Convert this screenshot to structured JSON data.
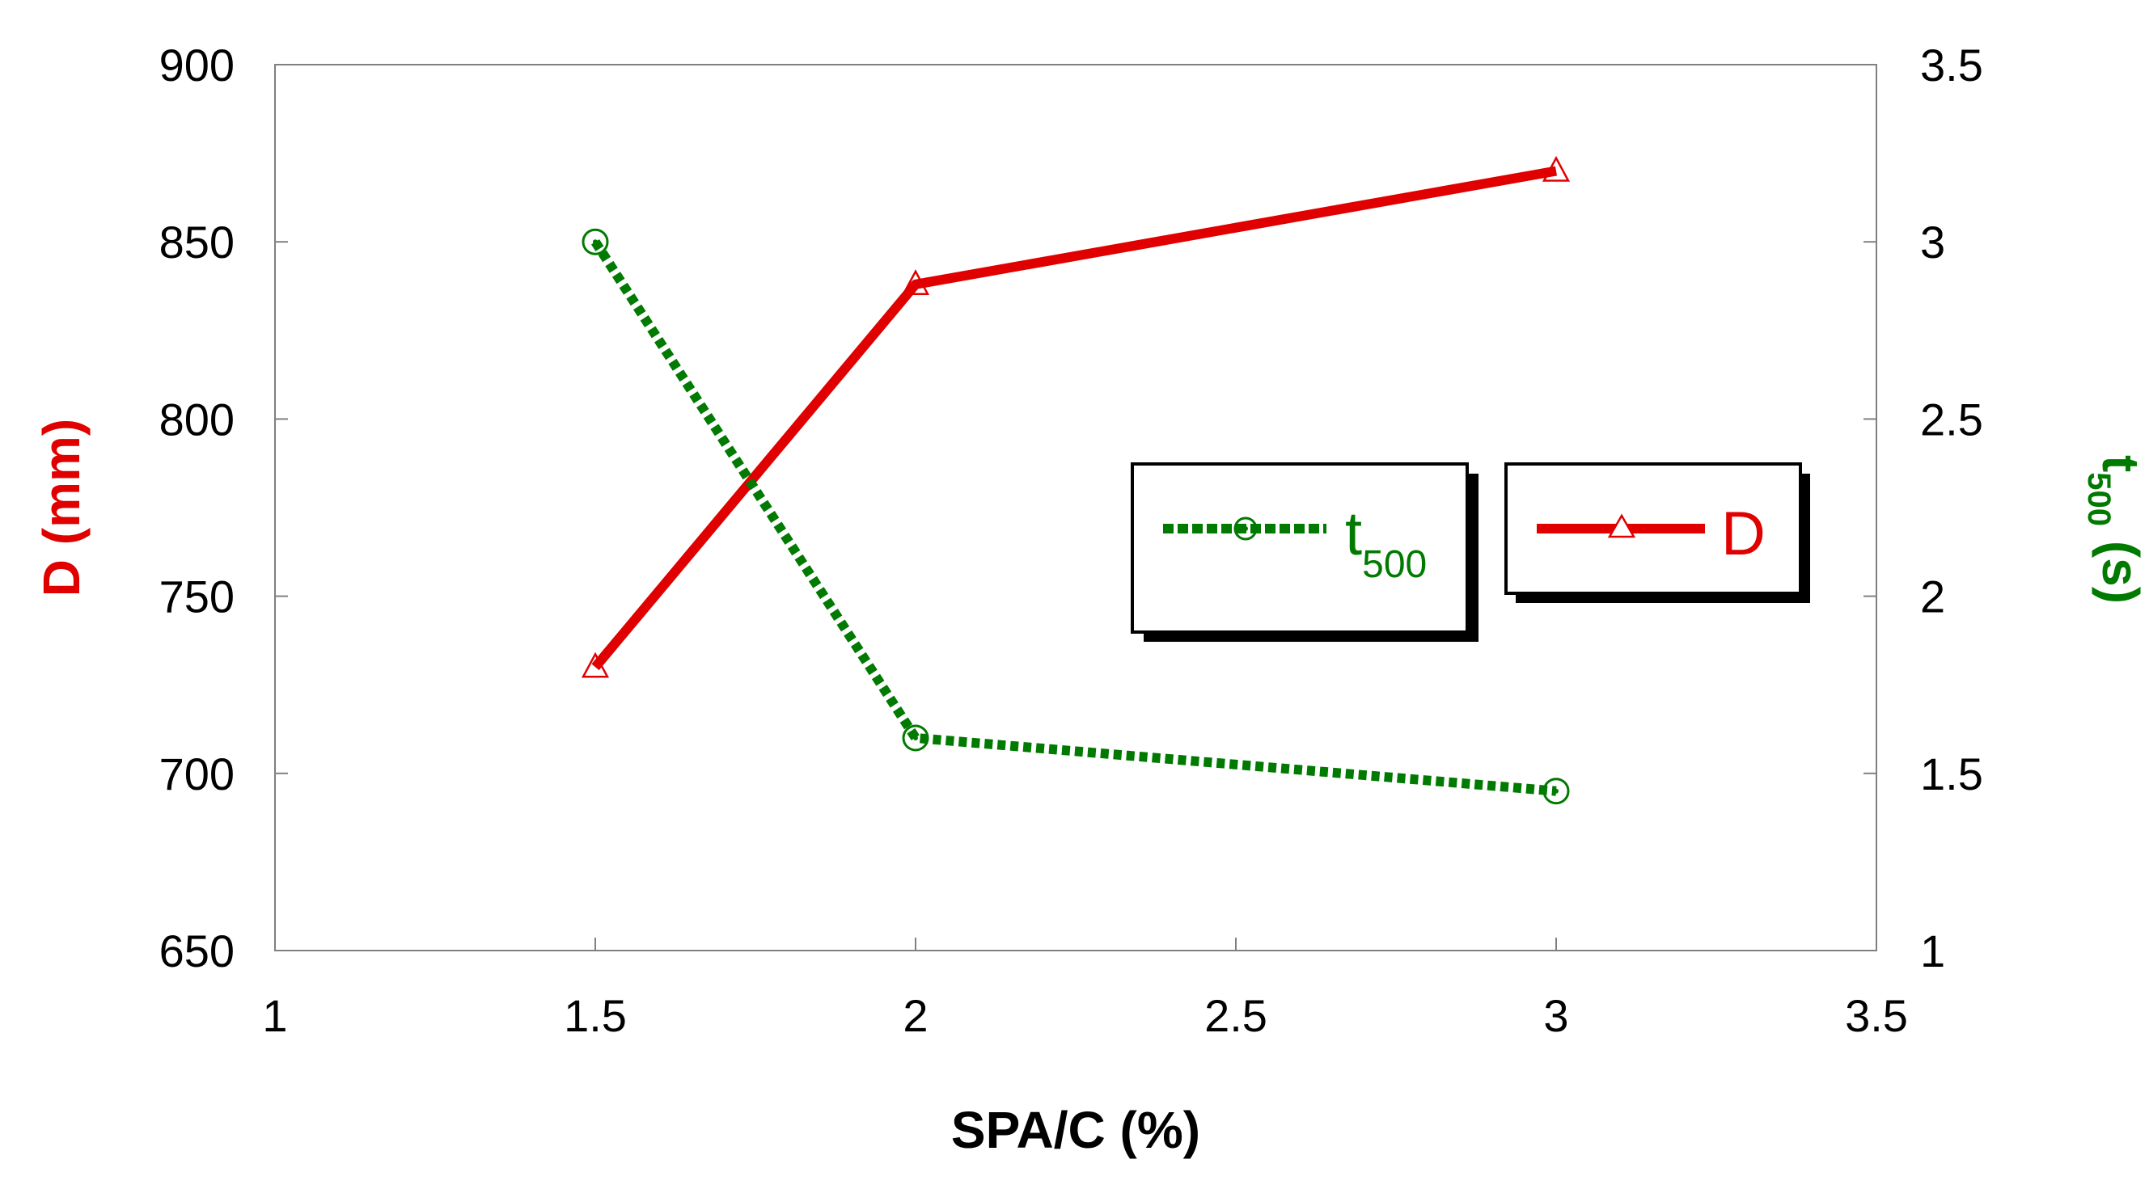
{
  "chart_data": {
    "type": "line",
    "title": "",
    "xlabel": "SPA/C (%)",
    "x": [
      1.5,
      2,
      3
    ],
    "xlim": [
      1,
      3.5
    ],
    "xticks": [
      "1",
      "1.5",
      "2",
      "2.5",
      "3",
      "3.5"
    ],
    "ylabel_left": "D (mm)",
    "ylim_left": [
      650,
      900
    ],
    "yticks_left": [
      "650",
      "700",
      "750",
      "800",
      "850",
      "900"
    ],
    "ylabel_right_main": "t",
    "ylabel_right_sub": "500",
    "ylabel_right_unit": " (s)",
    "ylim_right": [
      1,
      3.5
    ],
    "yticks_right": [
      "1",
      "1.5",
      "2",
      "2.5",
      "3",
      "3.5"
    ],
    "grid": false,
    "series": [
      {
        "name": "D",
        "axis": "left",
        "values": [
          730,
          838,
          870
        ],
        "color": "#e00000",
        "line_style": "solid",
        "marker": "triangle-open"
      },
      {
        "name": "t",
        "name_sub": "500",
        "axis": "right",
        "values": [
          3.0,
          1.6,
          1.45
        ],
        "color": "#007a00",
        "line_style": "dotted",
        "marker": "circle-dot-open"
      }
    ],
    "legend_placement": "center-right"
  }
}
